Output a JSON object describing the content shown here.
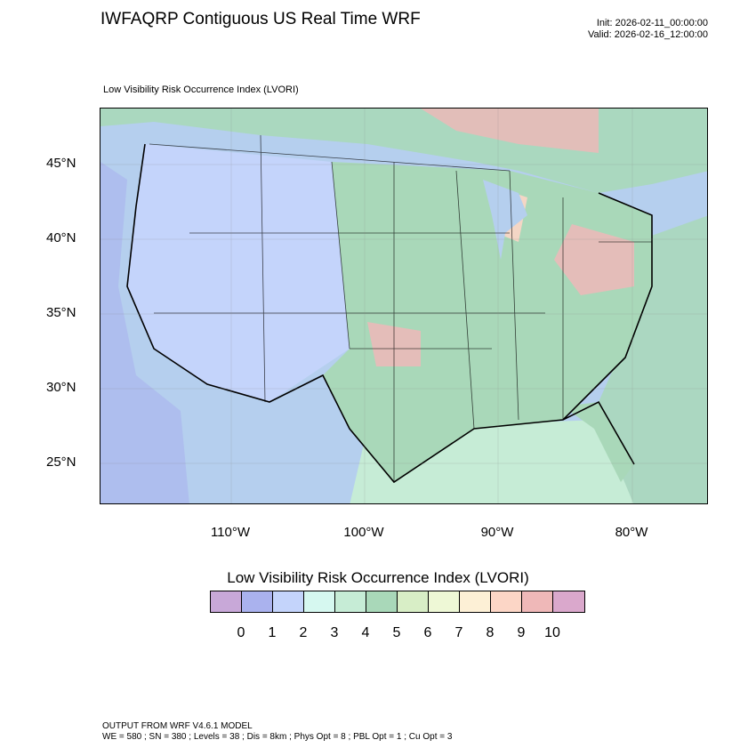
{
  "header": {
    "title": "IWFAQRP Contiguous US Real Time WRF",
    "init": "Init: 2026-02-11_00:00:00",
    "valid": "Valid: 2026-02-16_12:00:00"
  },
  "map": {
    "subtitle": "Low Visibility Risk Occurrence Index   (LVORI)",
    "lat_labels": [
      "45°N",
      "40°N",
      "35°N",
      "30°N",
      "25°N"
    ],
    "lon_labels": [
      "110°W",
      "100°W",
      "90°W",
      "80°W"
    ]
  },
  "colorbar": {
    "title": "Low Visibility Risk Occurrence Index  (LVORI)",
    "labels": [
      "0",
      "1",
      "2",
      "3",
      "4",
      "5",
      "6",
      "7",
      "8",
      "9",
      "10"
    ],
    "colors": [
      "#c8a8d8",
      "#aab2ee",
      "#c4d4fb",
      "#d6f8f0",
      "#c6ecd6",
      "#a9d8b9",
      "#d8eec6",
      "#eef8d6",
      "#fdf0d6",
      "#fcd6c6",
      "#efb8b8",
      "#daa8cc"
    ]
  },
  "footer": {
    "line1": "OUTPUT FROM WRF V4.6.1 MODEL",
    "line2": "WE = 580 ; SN = 380 ; Levels = 38 ; Dis = 8km ; Phys Opt = 8 ; PBL Opt = 1 ; Cu Opt = 3"
  }
}
